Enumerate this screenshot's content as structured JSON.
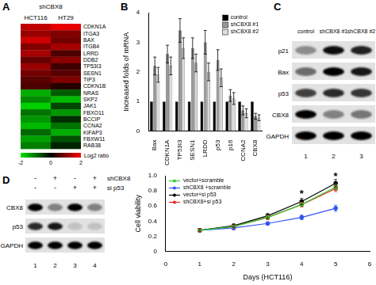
{
  "heatmap": {
    "panel": "A",
    "title": "shCBX8",
    "columns": [
      "HCT116",
      "HT29"
    ],
    "rows": [
      "CDKN1A",
      "ITGA3",
      "BAX",
      "ITGB4",
      "LRRD",
      "DDB2",
      "TP53I3",
      "SESN1",
      "TIP3",
      "CDKN1B",
      "NRAS",
      "SKP2",
      "JAK1",
      "FBXO11",
      "BCCIP",
      "CCNA2",
      "KIFAP3",
      "FBXW11",
      "RAB38"
    ],
    "cells": [
      [
        1.5,
        1.8
      ],
      [
        1.2,
        1.0
      ],
      [
        1.6,
        0.9
      ],
      [
        1.0,
        1.3
      ],
      [
        1.3,
        0.6
      ],
      [
        0.8,
        1.1
      ],
      [
        1.2,
        0.5
      ],
      [
        0.9,
        0.7
      ],
      [
        0.7,
        1.0
      ],
      [
        0.6,
        0.3
      ],
      [
        -1.5,
        -0.8
      ],
      [
        -1.2,
        -1.6
      ],
      [
        -1.8,
        -0.6
      ],
      [
        -1.0,
        -1.3
      ],
      [
        -1.3,
        -0.4
      ],
      [
        -1.6,
        -1.0
      ],
      [
        -0.9,
        -1.5
      ],
      [
        -1.4,
        -0.7
      ],
      [
        -1.1,
        -0.3
      ]
    ],
    "colorbar_range": [
      -2,
      2
    ],
    "colorbar_ticks": [
      -2,
      0,
      2
    ],
    "colorbar_label": "Log2 ratio"
  },
  "chart_data": [
    {
      "panel": "B",
      "type": "bar",
      "y_label": "Increased folds of mRNA",
      "categories": [
        "Bax",
        "CDKN1A",
        "TP53I3",
        "SESN1",
        "LRDD",
        "p53",
        "p16",
        "CCNA2",
        "CBX8"
      ],
      "series": [
        {
          "name": "control",
          "color": "#000000",
          "values": [
            1,
            1,
            1,
            1,
            1,
            1,
            1,
            1,
            1
          ]
        },
        {
          "name": "shCBX8 #1",
          "color": "#999999",
          "values": [
            2.2,
            2.6,
            3.4,
            2.8,
            3.0,
            2.4,
            1.2,
            0.7,
            0.5
          ],
          "errors": [
            0.3,
            0.3,
            0.4,
            0.35,
            0.4,
            0.35,
            0.2,
            0.15,
            0.1
          ]
        },
        {
          "name": "shCBX8 #2",
          "color": "#dddddd",
          "values": [
            1.9,
            2.2,
            2.8,
            2.3,
            2.0,
            1.8,
            1.1,
            0.6,
            0.45
          ],
          "errors": [
            0.25,
            0.3,
            0.35,
            0.3,
            0.3,
            0.3,
            0.2,
            0.15,
            0.1
          ]
        }
      ],
      "ylim": [
        0,
        4
      ],
      "yticks": [
        0,
        1,
        2,
        3,
        4
      ],
      "grid": false,
      "legend": "top-right"
    },
    {
      "type": "line",
      "x_label": "Days (HCT116)",
      "y_label": "Cell viability",
      "x": [
        1,
        2,
        3,
        4,
        5
      ],
      "series": [
        {
          "name": "vector+scramble",
          "color": "#33cc33",
          "marker": "circle",
          "values": [
            0.28,
            0.33,
            0.45,
            0.62,
            0.85
          ],
          "errors": [
            0.02,
            0.02,
            0.03,
            0.03,
            0.04
          ]
        },
        {
          "name": "shCBX8 +scramble",
          "color": "#3355ee",
          "marker": "circle",
          "values": [
            0.28,
            0.31,
            0.37,
            0.45,
            0.57
          ],
          "errors": [
            0.02,
            0.02,
            0.02,
            0.03,
            0.04
          ]
        },
        {
          "name": "vector+si p53",
          "color": "#000000",
          "marker": "circle",
          "values": [
            0.28,
            0.34,
            0.47,
            0.66,
            0.9
          ],
          "errors": [
            0.02,
            0.02,
            0.03,
            0.04,
            0.05
          ]
        },
        {
          "name": "shCBX8+si p53",
          "color": "#ee2222",
          "marker": "circle",
          "values": [
            0.28,
            0.33,
            0.45,
            0.62,
            0.83
          ],
          "errors": [
            0.02,
            0.02,
            0.03,
            0.03,
            0.04
          ]
        }
      ],
      "xlim": [
        0,
        6
      ],
      "xticks": [
        0,
        1,
        2,
        3,
        4,
        5,
        6
      ],
      "ylim": [
        0,
        1
      ],
      "yticks": [
        0,
        0.2,
        0.4,
        0.6,
        0.8,
        {
          "value": 1,
          "label": "1.0"
        }
      ],
      "grid": false,
      "legend": "top-left",
      "annotations": [
        {
          "text": "*",
          "x": 4,
          "y": 0.75
        },
        {
          "text": "*",
          "x": 5,
          "y": 0.98
        }
      ]
    }
  ],
  "blots": [
    {
      "panel": "C",
      "lanes": [
        "control",
        "shCBX8 #1",
        "shCBX8 #2"
      ],
      "lane_numbers": [
        1,
        2,
        3
      ],
      "bands": [
        {
          "label": "p21",
          "intensity": [
            0.35,
            0.95,
            0.85
          ]
        },
        {
          "label": "Bax",
          "intensity": [
            0.5,
            1.0,
            0.9
          ]
        },
        {
          "label": "p53",
          "intensity": [
            0.7,
            0.8,
            0.75
          ]
        },
        {
          "label": "CBX8",
          "intensity": [
            1.0,
            0.4,
            0.45
          ]
        },
        {
          "label": "GAPDH",
          "intensity": [
            1.0,
            1.0,
            1.0
          ]
        }
      ]
    },
    {
      "panel": "D",
      "conditions": [
        {
          "label": "shCBX8",
          "signs": [
            "-",
            "+",
            "-",
            "+"
          ]
        },
        {
          "label": "si p53",
          "signs": [
            "-",
            "-",
            "+",
            "+"
          ]
        }
      ],
      "lane_numbers": [
        1,
        2,
        3,
        4
      ],
      "bands": [
        {
          "label": "CBX8",
          "intensity": [
            1.0,
            0.4,
            1.0,
            0.4
          ]
        },
        {
          "label": "p53",
          "intensity": [
            0.8,
            0.9,
            0.1,
            0.1
          ]
        },
        {
          "label": "GAPDH",
          "intensity": [
            1.0,
            1.0,
            1.0,
            1.0
          ]
        }
      ]
    }
  ]
}
